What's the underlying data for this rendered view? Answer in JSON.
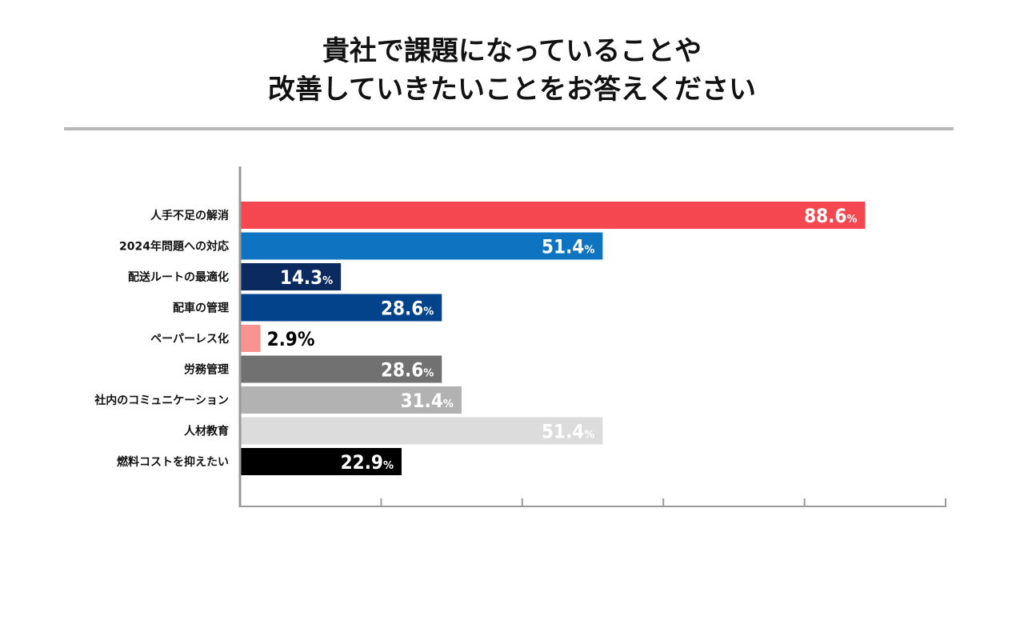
{
  "title": {
    "line1": "貴社で課題になっていることや",
    "line2": "改善していきたいことをお答えください"
  },
  "chart_data": {
    "type": "bar",
    "orientation": "horizontal",
    "categories": [
      "人手不足の解消",
      "2024年問題への対応",
      "配送ルートの最適化",
      "配車の管理",
      "ペーパーレス化",
      "労務管理",
      "社内のコミュニケーション",
      "人材教育",
      "燃料コストを抑えたい"
    ],
    "values": [
      88.6,
      51.4,
      14.3,
      28.6,
      2.9,
      28.6,
      31.4,
      51.4,
      22.9
    ],
    "value_labels": [
      "88.6",
      "51.4",
      "14.3",
      "28.6",
      "2.9",
      "28.6",
      "31.4",
      "51.4",
      "22.9"
    ],
    "value_suffix": "%",
    "colors": [
      "#f5474f",
      "#0e74c2",
      "#0a2a60",
      "#03438c",
      "#f79492",
      "#717171",
      "#b2b2b2",
      "#dcdcdc",
      "#000000"
    ],
    "label_colors": [
      "#ffffff",
      "#ffffff",
      "#ffffff",
      "#ffffff",
      "#000000",
      "#ffffff",
      "#ffffff",
      "#ffffff",
      "#ffffff"
    ],
    "xlim": [
      0,
      100
    ],
    "grid": false,
    "legend": "none"
  }
}
